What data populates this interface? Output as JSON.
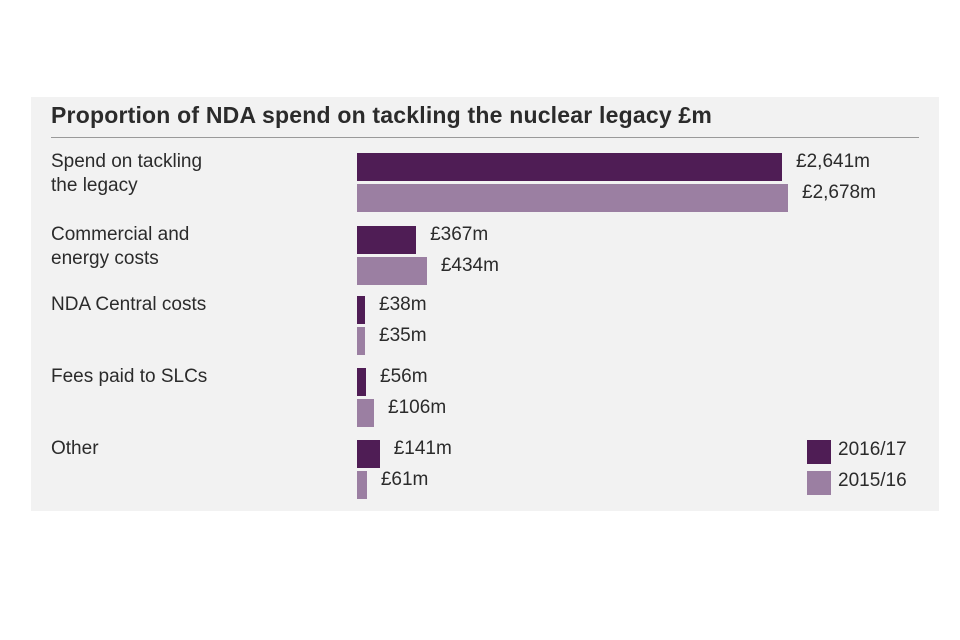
{
  "chart_data": {
    "type": "bar",
    "orientation": "horizontal",
    "title": "Proportion of NDA spend on tackling the nuclear legacy £m",
    "categories": [
      [
        "Spend on tackling",
        "the legacy"
      ],
      [
        "Commercial and",
        "energy costs"
      ],
      [
        "NDA Central costs"
      ],
      [
        "Fees paid to SLCs"
      ],
      [
        "Other"
      ]
    ],
    "series": [
      {
        "name": "2016/17",
        "color": "#4f1d55",
        "values": [
          2641,
          367,
          38,
          56,
          141
        ],
        "labels": [
          "£2,641m",
          "£367m",
          "£38m",
          "£56m",
          "£141m"
        ]
      },
      {
        "name": "2015/16",
        "color": "#9b7fa2",
        "values": [
          2678,
          434,
          35,
          106,
          61
        ],
        "labels": [
          "£2,678m",
          "£434m",
          "£35m",
          "£106m",
          "£61m"
        ]
      }
    ],
    "grid": false,
    "legend": "bottom-right"
  }
}
